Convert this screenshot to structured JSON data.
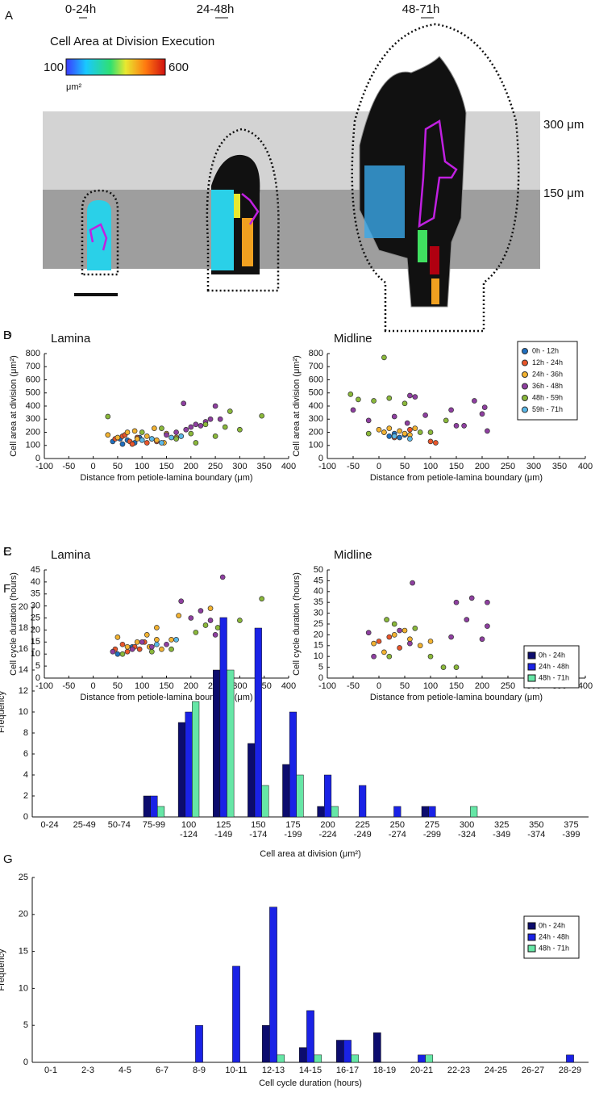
{
  "panel_a": {
    "label": "A",
    "time_windows": [
      "0-24h",
      "24-48h",
      "48-71h"
    ],
    "colorbar": {
      "title": "Cell Area at Division Execution",
      "min": 100,
      "max": 600,
      "unit": "μm²"
    },
    "bands": [
      "300 μm",
      "150 μm"
    ]
  },
  "chart_data": [
    {
      "type": "scatter",
      "panel_label": "B",
      "title": "Lamina",
      "x_label": "Distance from petiole-lamina boundary (μm)",
      "y_label": "Cell area at division (μm²)",
      "xlim": [
        -100,
        400
      ],
      "xticks": [
        -100,
        -50,
        0,
        50,
        100,
        150,
        200,
        250,
        300,
        350,
        400
      ],
      "ylim": [
        0,
        800
      ],
      "yticks": [
        0,
        100,
        200,
        300,
        400,
        500,
        600,
        700,
        800
      ],
      "series": [
        {
          "color": "#1f6fc0",
          "x": [
            40,
            55,
            60,
            70,
            85,
            95
          ],
          "values": [
            130,
            150,
            110,
            140,
            120,
            160
          ]
        },
        {
          "color": "#e8552a",
          "x": [
            45,
            60,
            75,
            80,
            90,
            100,
            110,
            120,
            130,
            65
          ],
          "values": [
            150,
            170,
            130,
            110,
            160,
            140,
            120,
            150,
            130,
            180
          ]
        },
        {
          "color": "#f2b230",
          "x": [
            30,
            50,
            70,
            90,
            110,
            130,
            150,
            170,
            85,
            125,
            145
          ],
          "values": [
            180,
            160,
            200,
            150,
            170,
            140,
            190,
            160,
            210,
            230,
            120
          ]
        },
        {
          "color": "#8e3fa0",
          "x": [
            150,
            170,
            180,
            190,
            200,
            210,
            220,
            230,
            240,
            250,
            260,
            185
          ],
          "values": [
            180,
            200,
            170,
            220,
            240,
            260,
            250,
            280,
            300,
            400,
            300,
            420
          ]
        },
        {
          "color": "#8ab83a",
          "x": [
            30,
            100,
            140,
            170,
            200,
            230,
            270,
            280,
            300,
            345,
            210,
            250
          ],
          "values": [
            320,
            200,
            230,
            150,
            190,
            260,
            240,
            360,
            220,
            325,
            120,
            170
          ]
        },
        {
          "color": "#5ab8e8",
          "x": [
            100,
            120,
            140,
            160,
            180
          ],
          "values": [
            140,
            150,
            120,
            160,
            170
          ]
        }
      ]
    },
    {
      "type": "scatter",
      "panel_label": "C",
      "title": "Lamina",
      "x_label": "Distance from petiole-lamina boundary (μm)",
      "y_label": "Cell cycle duration (hours)",
      "xlim": [
        -100,
        400
      ],
      "xticks": [
        -100,
        -50,
        0,
        50,
        100,
        150,
        200,
        250,
        300,
        350,
        400
      ],
      "ylim": [
        0,
        45
      ],
      "yticks": [
        0,
        5,
        10,
        15,
        20,
        25,
        30,
        35,
        40,
        45
      ],
      "series": [
        {
          "color": "#1f6fc0",
          "x": [
            50,
            80
          ],
          "values": [
            10,
            13
          ]
        },
        {
          "color": "#e8552a",
          "x": [
            45,
            60,
            70,
            85,
            95,
            105
          ],
          "values": [
            12,
            14,
            11,
            13,
            12,
            15
          ]
        },
        {
          "color": "#f2b230",
          "x": [
            50,
            70,
            90,
            110,
            130,
            140,
            160,
            175,
            115,
            130,
            240
          ],
          "values": [
            17,
            13,
            15,
            18,
            21,
            12,
            16,
            26,
            13,
            16,
            29
          ]
        },
        {
          "color": "#8e3fa0",
          "x": [
            40,
            80,
            100,
            120,
            150,
            180,
            200,
            220,
            240,
            265,
            250
          ],
          "values": [
            11,
            12,
            15,
            13,
            14,
            32,
            25,
            28,
            24,
            42,
            18
          ]
        },
        {
          "color": "#8ab83a",
          "x": [
            60,
            120,
            160,
            210,
            230,
            255,
            300,
            345
          ],
          "values": [
            10,
            11,
            12,
            19,
            22,
            21,
            24,
            33
          ]
        },
        {
          "color": "#5ab8e8",
          "x": [
            130,
            170
          ],
          "values": [
            14,
            16
          ]
        }
      ]
    },
    {
      "type": "scatter",
      "panel_label": "D",
      "title": "Midline",
      "x_label": "Distance from petiole-lamina boundary (μm)",
      "y_label": "Cell area at division (μm²)",
      "xlim": [
        -100,
        400
      ],
      "xticks": [
        -100,
        -50,
        0,
        50,
        100,
        150,
        200,
        250,
        300,
        350,
        400
      ],
      "ylim": [
        0,
        800
      ],
      "yticks": [
        0,
        100,
        200,
        300,
        400,
        500,
        600,
        700,
        800
      ],
      "legend": "upper right",
      "series": [
        {
          "name": "0h - 12h",
          "color": "#1f6fc0",
          "x": [
            20,
            30,
            40,
            50
          ],
          "values": [
            170,
            190,
            160,
            180
          ]
        },
        {
          "name": "12h - 24h",
          "color": "#e8552a",
          "x": [
            10,
            30,
            60,
            100,
            110
          ],
          "values": [
            200,
            160,
            220,
            130,
            120
          ]
        },
        {
          "name": "24h - 36h",
          "color": "#f2b230",
          "x": [
            0,
            10,
            20,
            40,
            50,
            60,
            70
          ],
          "values": [
            220,
            200,
            230,
            210,
            190,
            180,
            230
          ]
        },
        {
          "name": "36h - 48h",
          "color": "#8e3fa0",
          "x": [
            -50,
            -20,
            30,
            55,
            60,
            70,
            90,
            140,
            150,
            165,
            200,
            205,
            210,
            185
          ],
          "values": [
            370,
            290,
            320,
            270,
            480,
            470,
            330,
            370,
            250,
            250,
            340,
            390,
            210,
            440
          ]
        },
        {
          "name": "48h - 59h",
          "color": "#8ab83a",
          "x": [
            -55,
            -40,
            -10,
            10,
            20,
            50,
            80,
            100,
            130,
            -20
          ],
          "values": [
            490,
            450,
            440,
            770,
            460,
            420,
            200,
            200,
            290,
            190
          ]
        },
        {
          "name": "59h - 71h",
          "color": "#5ab8e8",
          "x": [
            30,
            60
          ],
          "values": [
            170,
            150
          ]
        }
      ]
    },
    {
      "type": "scatter",
      "panel_label": "E",
      "title": "Midline",
      "x_label": "Distance from petiole-lamina boundary (μm)",
      "y_label": "Cell cycle duration (hours)",
      "xlim": [
        -100,
        400
      ],
      "xticks": [
        -100,
        -50,
        0,
        50,
        100,
        150,
        200,
        250,
        300,
        350,
        400
      ],
      "ylim": [
        0,
        50
      ],
      "yticks": [
        0,
        5,
        10,
        15,
        20,
        25,
        30,
        35,
        40,
        45,
        50
      ],
      "series": [
        {
          "color": "#e8552a",
          "x": [
            0,
            20,
            40
          ],
          "values": [
            17,
            19,
            14
          ]
        },
        {
          "color": "#f2b230",
          "x": [
            -10,
            10,
            30,
            50,
            60,
            80,
            100
          ],
          "values": [
            16,
            12,
            20,
            22,
            18,
            15,
            17
          ]
        },
        {
          "color": "#8e3fa0",
          "x": [
            -20,
            -10,
            40,
            60,
            65,
            150,
            180,
            200,
            210,
            210,
            170,
            140
          ],
          "values": [
            21,
            10,
            22,
            16,
            44,
            35,
            37,
            18,
            35,
            24,
            27,
            19
          ]
        },
        {
          "color": "#8ab83a",
          "x": [
            15,
            30,
            70,
            125,
            150,
            100,
            20
          ],
          "values": [
            27,
            25,
            23,
            5,
            5,
            10,
            10
          ]
        }
      ]
    },
    {
      "type": "bar",
      "panel_label": "F",
      "x_label": "Cell area at division (μm²)",
      "y_label": "Frequency",
      "categories": [
        "0-24",
        "25-49",
        "50-74",
        "75-99",
        "100\n-124",
        "125\n-149",
        "150\n-174",
        "175\n-199",
        "200\n-224",
        "225\n-249",
        "250\n-274",
        "275\n-299",
        "300\n-324",
        "325\n-349",
        "350\n-374",
        "375\n-399"
      ],
      "ylim": [
        0,
        20
      ],
      "yticks": [
        0,
        2,
        4,
        6,
        8,
        10,
        12,
        14,
        16,
        18,
        20
      ],
      "legend": "upper right",
      "series": [
        {
          "name": "0h - 24h",
          "color": "#0c0c6e",
          "values": [
            0,
            0,
            0,
            2,
            9,
            14,
            7,
            5,
            1,
            0,
            0,
            1,
            0,
            0,
            0,
            0
          ]
        },
        {
          "name": "24h - 48h",
          "color": "#1a22e6",
          "values": [
            0,
            0,
            0,
            2,
            10,
            19,
            18,
            10,
            4,
            3,
            1,
            1,
            0,
            0,
            0,
            0
          ]
        },
        {
          "name": "48h - 71h",
          "color": "#66e6a6",
          "values": [
            0,
            0,
            0,
            1,
            11,
            14,
            3,
            4,
            1,
            0,
            0,
            0,
            1,
            0,
            0,
            0
          ]
        }
      ]
    },
    {
      "type": "bar",
      "panel_label": "G",
      "x_label": "Cell cycle duration (hours)",
      "y_label": "Frequency",
      "categories": [
        "0-1",
        "2-3",
        "4-5",
        "6-7",
        "8-9",
        "10-11",
        "12-13",
        "14-15",
        "16-17",
        "18-19",
        "20-21",
        "22-23",
        "24-25",
        "26-27",
        "28-29"
      ],
      "ylim": [
        0,
        25
      ],
      "yticks": [
        0,
        5,
        10,
        15,
        20,
        25
      ],
      "legend": "upper right",
      "series": [
        {
          "name": "0h - 24h",
          "color": "#0c0c6e",
          "values": [
            0,
            0,
            0,
            0,
            0,
            0,
            5,
            2,
            3,
            4,
            0,
            0,
            0,
            0,
            0
          ]
        },
        {
          "name": "24h - 48h",
          "color": "#1a22e6",
          "values": [
            0,
            0,
            0,
            0,
            5,
            13,
            21,
            7,
            3,
            0,
            1,
            0,
            0,
            0,
            1
          ]
        },
        {
          "name": "48h - 71h",
          "color": "#66e6a6",
          "values": [
            0,
            0,
            0,
            0,
            0,
            0,
            1,
            1,
            1,
            0,
            1,
            0,
            0,
            0,
            0
          ]
        }
      ]
    }
  ]
}
